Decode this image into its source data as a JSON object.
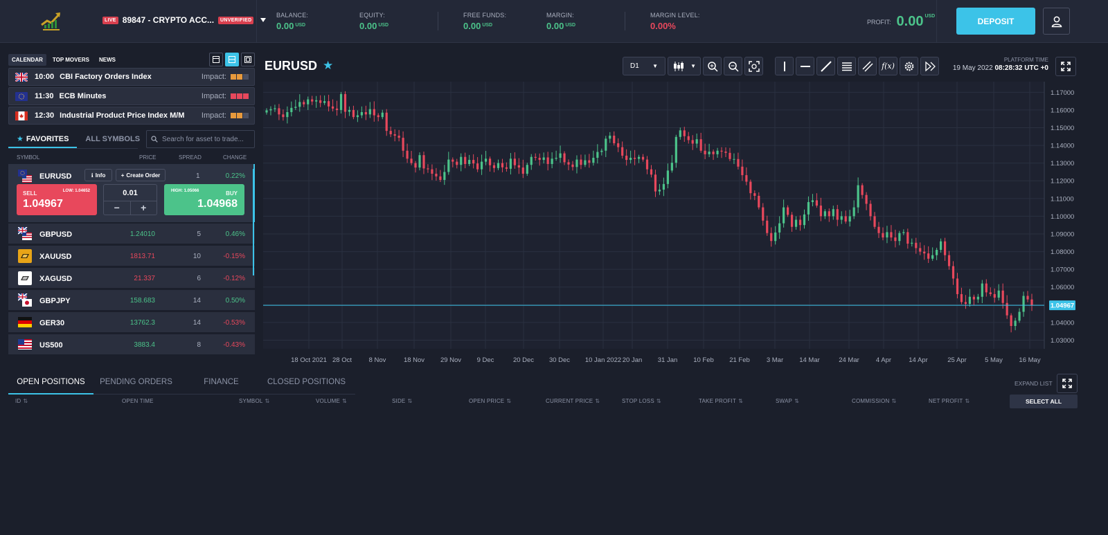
{
  "header": {
    "account": {
      "live_badge": "LIVE",
      "name": "89847 - CRYPTO ACC...",
      "status": "UNVERIFIED"
    },
    "metrics": [
      {
        "label": "BALANCE:",
        "value": "0.00",
        "unit": "USD",
        "color": "green"
      },
      {
        "label": "EQUITY:",
        "value": "0.00",
        "unit": "USD",
        "color": "green"
      },
      {
        "label": "FREE FUNDS:",
        "value": "0.00",
        "unit": "USD",
        "color": "green"
      },
      {
        "label": "MARGIN:",
        "value": "0.00",
        "unit": "USD",
        "color": "green"
      },
      {
        "label": "MARGIN LEVEL:",
        "value": "0.00%",
        "unit": "",
        "color": "red"
      }
    ],
    "profit": {
      "label": "PROFIT:",
      "value": "0.00",
      "unit": "USD"
    },
    "deposit_label": "DEPOSIT"
  },
  "calendar": {
    "tabs": [
      "CALENDAR",
      "TOP MOVERS",
      "NEWS"
    ],
    "events": [
      {
        "flag": "uk",
        "time": "10:00",
        "title": "CBI Factory Orders Index",
        "impact_label": "Impact:",
        "impact": 2
      },
      {
        "flag": "eu",
        "time": "11:30",
        "title": "ECB Minutes",
        "impact_label": "Impact:",
        "impact": 3
      },
      {
        "flag": "ca",
        "time": "12:30",
        "title": "Industrial Product Price Index M/M",
        "impact_label": "Impact:",
        "impact": 2
      }
    ]
  },
  "symbols": {
    "tabs": {
      "favorites": "FAVORITES",
      "all": "ALL SYMBOLS"
    },
    "search_placeholder": "Search for asset to trade...",
    "columns": {
      "symbol": "SYMBOL",
      "price": "PRICE",
      "spread": "SPREAD",
      "change": "CHANGE"
    },
    "selected": {
      "name": "EURUSD",
      "info_label": "Info",
      "create_label": "Create Order",
      "spread": "1",
      "change": "0.22%",
      "sell_label": "SELL",
      "low_label": "LOW: 1.04652",
      "sell_price": "1.04967",
      "buy_label": "BUY",
      "high_label": "HIGH: 1.05066",
      "buy_price": "1.04968",
      "quantity": "0.01",
      "minus": "−",
      "plus": "+"
    },
    "rows": [
      {
        "name": "GBPUSD",
        "price": "1.24010",
        "price_color": "green",
        "spread": "5",
        "change": "0.46%",
        "change_color": "green",
        "flag": "gbpusd"
      },
      {
        "name": "XAUUSD",
        "price": "1813.71",
        "price_color": "red",
        "spread": "10",
        "change": "-0.15%",
        "change_color": "red",
        "flag": "gold"
      },
      {
        "name": "XAGUSD",
        "price": "21.337",
        "price_color": "red",
        "spread": "6",
        "change": "-0.12%",
        "change_color": "red",
        "flag": "silver"
      },
      {
        "name": "GBPJPY",
        "price": "158.683",
        "price_color": "green",
        "spread": "14",
        "change": "0.50%",
        "change_color": "green",
        "flag": "gbpjpy"
      },
      {
        "name": "GER30",
        "price": "13762.3",
        "price_color": "green",
        "spread": "14",
        "change": "-0.53%",
        "change_color": "red",
        "flag": "de"
      },
      {
        "name": "US500",
        "price": "3883.4",
        "price_color": "green",
        "spread": "8",
        "change": "-0.43%",
        "change_color": "red",
        "flag": "us"
      }
    ]
  },
  "chart_header": {
    "symbol": "EURUSD",
    "timeframe": "D1",
    "platform_time_label": "PLATFORM TIME",
    "platform_date": "19 May 2022",
    "platform_clock": "08:28:32 UTC +0",
    "toolbar_icons": [
      "candles-icon",
      "zoom-in-icon",
      "zoom-out-icon",
      "zoom-fit-icon",
      "vertical-line-icon",
      "horizontal-line-icon",
      "trend-line-icon",
      "channel-icon",
      "parallel-lines-icon",
      "fx-indicator-icon",
      "settings-icon",
      "scroll-to-end-icon"
    ]
  },
  "chart_data": {
    "type": "candlestick",
    "title": "",
    "ylim": [
      1.025,
      1.175
    ],
    "y_ticks": [
      "1.17000",
      "1.16000",
      "1.15000",
      "1.14000",
      "1.13000",
      "1.12000",
      "1.11000",
      "1.10000",
      "1.09000",
      "1.08000",
      "1.07000",
      "1.06000",
      "1.05000",
      "1.04000",
      "1.03000"
    ],
    "x_ticks": [
      "18 Oct 2021",
      "28 Oct",
      "8 Nov",
      "18 Nov",
      "29 Nov",
      "9 Dec",
      "20 Dec",
      "30 Dec",
      "10 Jan 2022",
      "20 Jan",
      "31 Jan",
      "10 Feb",
      "21 Feb",
      "3 Mar",
      "14 Mar",
      "24 Mar",
      "4 Apr",
      "14 Apr",
      "25 Apr",
      "5 May",
      "16 May"
    ],
    "current_price": "1.04967",
    "current_price_value": 1.04967,
    "up_color": "#4cc38a",
    "down_color": "#e8485c",
    "closes": [
      1.1598,
      1.1605,
      1.161,
      1.1575,
      1.156,
      1.1588,
      1.1612,
      1.1618,
      1.1645,
      1.1632,
      1.166,
      1.1648,
      1.1655,
      1.164,
      1.165,
      1.162,
      1.1608,
      1.16,
      1.169,
      1.159,
      1.16,
      1.156,
      1.157,
      1.1588,
      1.1575,
      1.1605,
      1.157,
      1.156,
      1.1585,
      1.1482,
      1.1463,
      1.1455,
      1.1443,
      1.137,
      1.1325,
      1.13,
      1.1275,
      1.1345,
      1.127,
      1.1265,
      1.124,
      1.1225,
      1.1205,
      1.125,
      1.132,
      1.1308,
      1.129,
      1.1335,
      1.1295,
      1.1318,
      1.1298,
      1.1265,
      1.1308,
      1.1325,
      1.1288,
      1.1272,
      1.13,
      1.1276,
      1.1268,
      1.1325,
      1.1288,
      1.1275,
      1.124,
      1.129,
      1.1335,
      1.133,
      1.1318,
      1.1332,
      1.1295,
      1.1325,
      1.133,
      1.1355,
      1.1305,
      1.1292,
      1.1278,
      1.132,
      1.129,
      1.1316,
      1.1302,
      1.133,
      1.1363,
      1.137,
      1.1438,
      1.1455,
      1.1412,
      1.139,
      1.1342,
      1.1318,
      1.133,
      1.1324,
      1.1335,
      1.132,
      1.1265,
      1.1235,
      1.114,
      1.115,
      1.1182,
      1.1258,
      1.1302,
      1.1448,
      1.1485,
      1.1452,
      1.143,
      1.141,
      1.1435,
      1.137,
      1.135,
      1.1365,
      1.135,
      1.137,
      1.1365,
      1.1358,
      1.1323,
      1.1323,
      1.128,
      1.1232,
      1.1195,
      1.113,
      1.1115,
      1.105,
      1.0975,
      1.0905,
      1.086,
      1.0908,
      1.096,
      1.105,
      1.1008,
      1.094,
      1.098,
      1.095,
      1.101,
      1.108,
      1.109,
      1.106,
      1.1,
      1.1028,
      1.1,
      1.104,
      1.098,
      1.1,
      1.097,
      1.1,
      1.105,
      1.1175,
      1.112,
      1.107,
      1.1,
      1.094,
      1.0905,
      1.088,
      1.091,
      1.088,
      1.086,
      1.0905,
      1.091,
      1.0845,
      1.085,
      1.082,
      1.08,
      1.079,
      1.076,
      1.078,
      1.081,
      1.0858,
      1.078,
      1.0718,
      1.0648,
      1.056,
      1.0515,
      1.0505,
      1.0545,
      1.053,
      1.0545,
      1.062,
      1.057,
      1.056,
      1.054,
      1.058,
      1.051,
      1.044,
      1.038,
      1.041,
      1.046,
      1.055,
      1.053,
      1.0497
    ]
  },
  "bottom": {
    "tabs": [
      "OPEN POSITIONS",
      "PENDING ORDERS",
      "FINANCE",
      "CLOSED POSITIONS"
    ],
    "expand_label": "EXPAND LIST",
    "select_all_label": "SELECT ALL",
    "columns": [
      "ID",
      "OPEN TIME",
      "SYMBOL",
      "VOLUME",
      "SIDE",
      "OPEN PRICE",
      "CURRENT PRICE",
      "STOP LOSS",
      "TAKE PROFIT",
      "SWAP",
      "COMMISSION",
      "NET PROFIT"
    ]
  }
}
